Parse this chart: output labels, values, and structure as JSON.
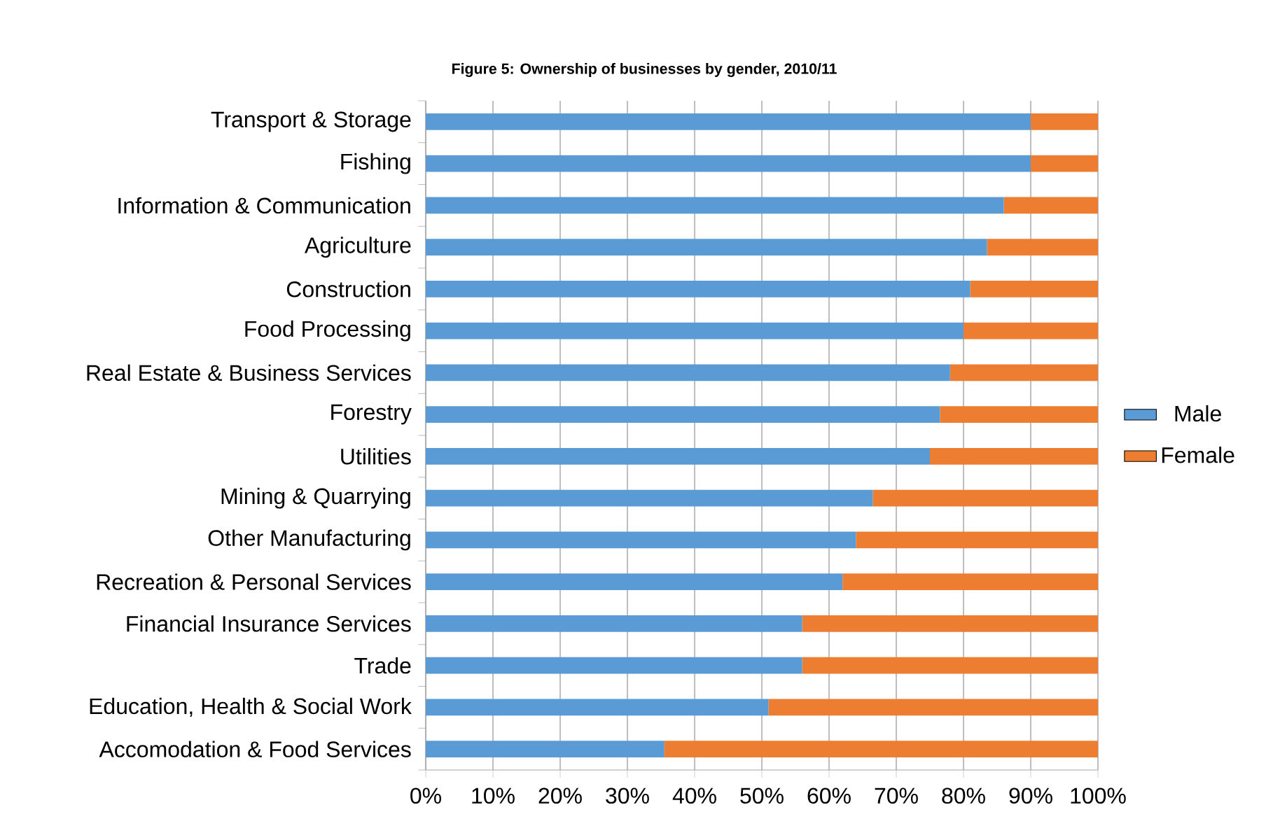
{
  "chart_data": {
    "type": "bar",
    "orientation": "horizontal",
    "stacked": true,
    "title": "Figure 5: Ownership of businesses by gender, 2010/11",
    "categories": [
      "Transport & Storage",
      "Fishing",
      "Information & Communication",
      "Agriculture",
      "Construction",
      "Food Processing",
      "Real Estate & Business Services",
      "Forestry",
      "Utilities",
      "Mining & Quarrying",
      "Other Manufacturing",
      "Recreation & Personal Services",
      "Financial Insurance Services",
      "Trade",
      "Education, Health & Social Work",
      "Accomodation & Food Services"
    ],
    "series": [
      {
        "name": "Male",
        "color": "#5b9bd5",
        "values": [
          90,
          90,
          86,
          83.5,
          81,
          80,
          78,
          76.5,
          75,
          66.5,
          64,
          62,
          56,
          56,
          51,
          35.5
        ]
      },
      {
        "name": "Female",
        "color": "#ed7d31",
        "values": [
          10,
          10,
          14,
          16.5,
          19,
          20,
          22,
          23.5,
          25,
          33.5,
          36,
          38,
          44,
          44,
          49,
          64.5
        ]
      }
    ],
    "xlim": [
      0,
      100
    ],
    "xticks": [
      {
        "value": 0,
        "label": "0%"
      },
      {
        "value": 10,
        "label": "10%"
      },
      {
        "value": 20,
        "label": "20%"
      },
      {
        "value": 30,
        "label": "30%"
      },
      {
        "value": 40,
        "label": "40%"
      },
      {
        "value": 50,
        "label": "50%"
      },
      {
        "value": 60,
        "label": "60%"
      },
      {
        "value": 70,
        "label": "70%"
      },
      {
        "value": 80,
        "label": "80%"
      },
      {
        "value": 90,
        "label": "90%"
      },
      {
        "value": 100,
        "label": "100%"
      }
    ],
    "grid": "x",
    "legend": "right"
  }
}
